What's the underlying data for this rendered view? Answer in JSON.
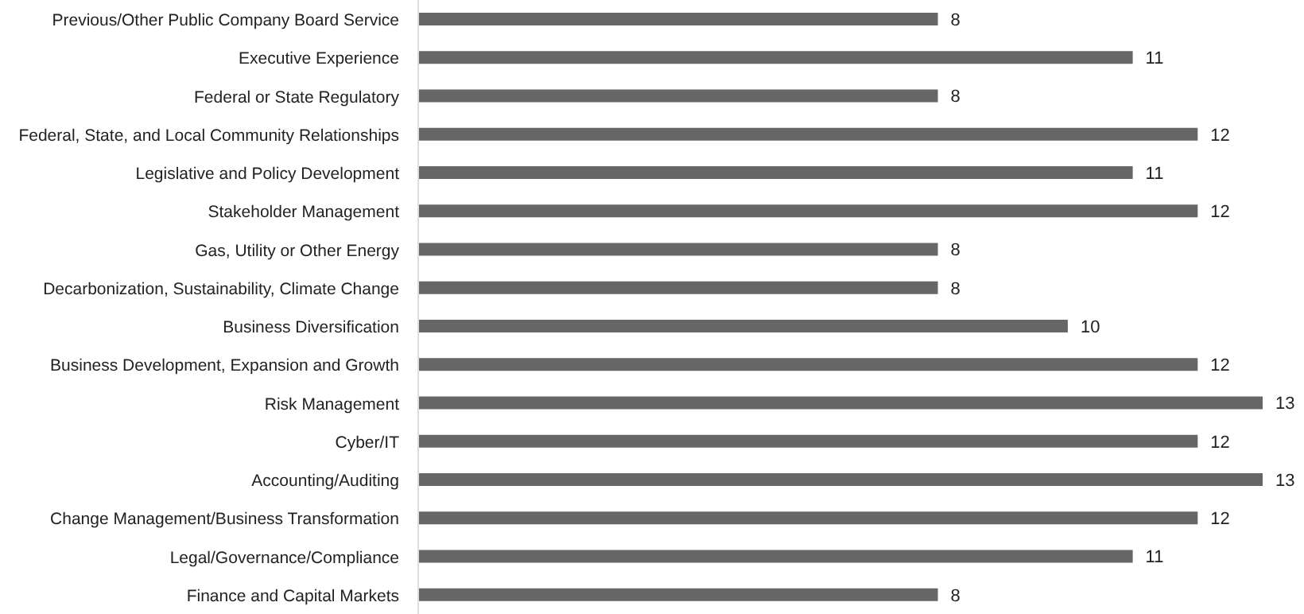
{
  "chart_data": {
    "type": "bar",
    "orientation": "horizontal",
    "data_labels": true,
    "color": "#666666",
    "categories": [
      "Previous/Other Public Company Board Service",
      "Executive Experience",
      "Federal or State Regulatory",
      "Federal, State, and Local Community Relationships",
      "Legislative and Policy Development",
      "Stakeholder Management",
      "Gas, Utility or Other Energy",
      "Decarbonization, Sustainability, Climate Change",
      "Business Diversification",
      "Business Development, Expansion and Growth",
      "Risk Management",
      "Cyber/IT",
      "Accounting/Auditing",
      "Change Management/Business Transformation",
      "Legal/Governance/Compliance",
      "Finance and Capital Markets"
    ],
    "values": [
      8,
      11,
      8,
      12,
      11,
      12,
      8,
      8,
      10,
      12,
      13,
      12,
      13,
      12,
      11,
      8
    ]
  }
}
